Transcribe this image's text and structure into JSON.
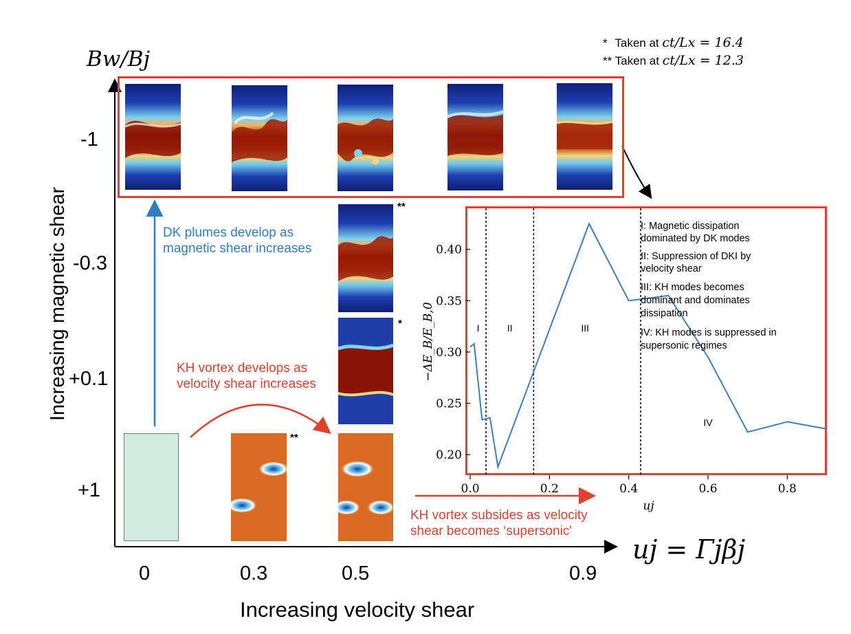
{
  "notes": {
    "single_star": "*",
    "single_text": "Taken at",
    "single_math": "ct/Lx = 16.4",
    "double_star": "**",
    "double_text": "Taken at",
    "double_math": "ct/Lx = 12.3"
  },
  "y_axis": {
    "title": "Increasing magnetic shear",
    "label_math": "Bw/Bj",
    "ticks": [
      "-1",
      "-0.3",
      "+0.1",
      "+1"
    ]
  },
  "x_axis": {
    "title": "Increasing velocity shear",
    "label_math": "uj = Γjβj",
    "ticks": [
      "0",
      "0.3",
      "0.5",
      "0.9"
    ]
  },
  "annotations": {
    "dk_plumes": [
      "DK plumes develop as",
      "magnetic shear increases"
    ],
    "kh_develops": [
      "KH vortex develops as",
      "velocity shear increases"
    ],
    "kh_subsides": [
      "KH vortex subsides as velocity",
      "shear becomes ‘supersonic'"
    ],
    "star_panel_single": "*",
    "star_panel_double_a": "**",
    "star_panel_double_b": "**"
  },
  "colors": {
    "accent_red": "#e0412d",
    "accent_blue": "#2f7dc1",
    "line": "#3a7fc4"
  },
  "chart_data": {
    "type": "line",
    "title": "",
    "xlabel": "uj",
    "ylabel": "−ΔE_B/E_B,0",
    "xlim": [
      0,
      0.9
    ],
    "ylim": [
      0.18,
      0.44
    ],
    "x_ticks": [
      "0.0",
      "0.2",
      "0.4",
      "0.6",
      "0.8"
    ],
    "y_ticks": [
      "0.20",
      "0.25",
      "0.30",
      "0.35",
      "0.40"
    ],
    "grid": false,
    "series": [
      {
        "x": [
          0.0,
          0.01,
          0.03,
          0.04,
          0.05,
          0.07,
          0.3,
          0.4,
          0.5,
          0.6,
          0.7,
          0.8,
          0.9
        ],
        "values": [
          0.305,
          0.308,
          0.234,
          0.235,
          0.236,
          0.188,
          0.425,
          0.35,
          0.355,
          0.295,
          0.222,
          0.232,
          0.225
        ]
      }
    ],
    "vlines": [
      0.04,
      0.16,
      0.43
    ],
    "region_labels": [
      {
        "text": "I",
        "x": 0.02,
        "y": 0.32
      },
      {
        "text": "II",
        "x": 0.1,
        "y": 0.32
      },
      {
        "text": "III",
        "x": 0.29,
        "y": 0.32
      },
      {
        "text": "IV",
        "x": 0.6,
        "y": 0.228
      }
    ],
    "legend_text": [
      "I: Magnetic dissipation",
      "dominated by DK modes",
      "II: Suppression of DKI by",
      "velocity shear",
      "III: KH modes becomes",
      "dominant and dominates",
      "dissipation",
      "IV: KH modes is suppressed in",
      "supersonic regimes"
    ]
  }
}
